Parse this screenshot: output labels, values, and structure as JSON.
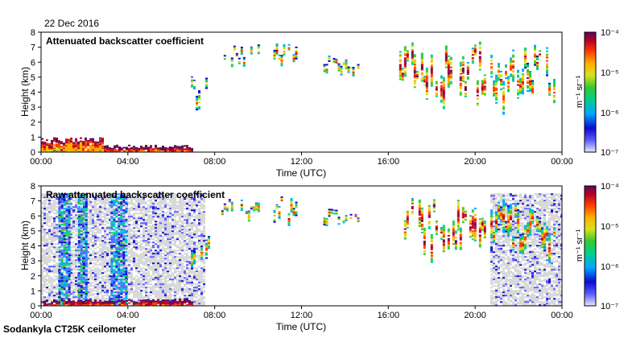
{
  "date": "22 Dec 2016",
  "footer": "Sodankyla CT25K ceilometer",
  "colors": {
    "noise": "#d6d6d6",
    "colormap": [
      "#e9e9ff",
      "#5a5aff",
      "#0b0bd0",
      "#00a7ff",
      "#00d08a",
      "#36c832",
      "#d8e21a",
      "#ffae00",
      "#ff3b00",
      "#b40028",
      "#5a0a55"
    ]
  },
  "chart_data": [
    {
      "type": "heatmap",
      "title": "Attenuated backscatter coefficient",
      "xlabel": "Time (UTC)",
      "ylabel": "Height (km)",
      "x_ticks": [
        "00:00",
        "04:00",
        "08:00",
        "12:00",
        "16:00",
        "20:00",
        "00:00"
      ],
      "xlim_hours": [
        0,
        24
      ],
      "y_ticks": [
        "0",
        "1",
        "2",
        "3",
        "4",
        "5",
        "6",
        "7",
        "8"
      ],
      "ylim_km": [
        0,
        8
      ],
      "colorbar": {
        "label": "m⁻¹ sr⁻¹",
        "scale": "log",
        "range": [
          1e-07,
          0.0001
        ],
        "tick_labels": [
          "10⁻⁴",
          "10⁻⁵",
          "10⁻⁶",
          "10⁻⁷"
        ]
      },
      "features": [
        {
          "kind": "boundary_layer",
          "start_h": 0.0,
          "end_h": 7.0,
          "top_km": 0.45,
          "log10_level": -5.0
        },
        {
          "kind": "aerosol_plume",
          "start_h": 0.0,
          "end_h": 2.8,
          "top_km": 1.0,
          "log10_level": -5.3
        },
        {
          "kind": "cloud",
          "start_h": 6.9,
          "end_h": 7.7,
          "base_km": 2.2,
          "top_km": 5.2,
          "log10_level": -5.3
        },
        {
          "kind": "cloud",
          "start_h": 8.3,
          "end_h": 10.0,
          "base_km": 5.5,
          "top_km": 7.2,
          "log10_level": -5.2
        },
        {
          "kind": "cloud",
          "start_h": 10.7,
          "end_h": 11.8,
          "base_km": 5.3,
          "top_km": 7.3,
          "log10_level": -5.0
        },
        {
          "kind": "cloud",
          "start_h": 13.0,
          "end_h": 14.6,
          "base_km": 5.0,
          "top_km": 6.5,
          "log10_level": -5.2
        },
        {
          "kind": "cloud",
          "start_h": 16.5,
          "end_h": 20.4,
          "base_km": 2.5,
          "top_km": 7.4,
          "log10_level": -4.6
        },
        {
          "kind": "cloud",
          "start_h": 20.7,
          "end_h": 23.8,
          "base_km": 2.5,
          "top_km": 7.2,
          "log10_level": -5.0
        }
      ]
    },
    {
      "type": "heatmap",
      "title": "Raw attenuated backscatter coefficient",
      "xlabel": "Time (UTC)",
      "ylabel": "Height (km)",
      "x_ticks": [
        "00:00",
        "04:00",
        "08:00",
        "12:00",
        "16:00",
        "20:00",
        "00:00"
      ],
      "xlim_hours": [
        0,
        24
      ],
      "y_ticks": [
        "0",
        "1",
        "2",
        "3",
        "4",
        "5",
        "6",
        "7",
        "8"
      ],
      "ylim_km": [
        0,
        8
      ],
      "colorbar": {
        "label": "m⁻¹ sr⁻¹",
        "scale": "log",
        "range": [
          1e-07,
          0.0001
        ],
        "tick_labels": [
          "10⁻⁴",
          "10⁻⁵",
          "10⁻⁶",
          "10⁻⁷"
        ]
      },
      "features": [
        {
          "kind": "noise_background",
          "start_h": 0.0,
          "end_h": 7.5,
          "top_km": 7.5
        },
        {
          "kind": "noise_background",
          "start_h": 20.7,
          "end_h": 24.0,
          "top_km": 7.5
        },
        {
          "kind": "noise_column",
          "start_h": 0.8,
          "end_h": 1.3,
          "top_km": 7.5,
          "log10_level": -6.2
        },
        {
          "kind": "noise_column",
          "start_h": 1.7,
          "end_h": 2.1,
          "top_km": 7.5,
          "log10_level": -6.2
        },
        {
          "kind": "noise_column",
          "start_h": 3.2,
          "end_h": 3.9,
          "top_km": 7.5,
          "log10_level": -6.3
        },
        {
          "kind": "boundary_layer",
          "start_h": 0.0,
          "end_h": 7.0,
          "top_km": 0.45,
          "log10_level": -5.0
        },
        {
          "kind": "cloud",
          "start_h": 6.9,
          "end_h": 7.7,
          "base_km": 2.2,
          "top_km": 5.2,
          "log10_level": -5.3
        },
        {
          "kind": "cloud",
          "start_h": 8.3,
          "end_h": 10.0,
          "base_km": 5.5,
          "top_km": 7.2,
          "log10_level": -5.2
        },
        {
          "kind": "cloud",
          "start_h": 10.7,
          "end_h": 11.8,
          "base_km": 5.3,
          "top_km": 7.3,
          "log10_level": -5.0
        },
        {
          "kind": "cloud",
          "start_h": 13.0,
          "end_h": 14.6,
          "base_km": 5.0,
          "top_km": 6.5,
          "log10_level": -5.2
        },
        {
          "kind": "cloud",
          "start_h": 16.5,
          "end_h": 20.4,
          "base_km": 2.5,
          "top_km": 7.4,
          "log10_level": -4.6
        },
        {
          "kind": "cloud",
          "start_h": 20.7,
          "end_h": 23.8,
          "base_km": 2.5,
          "top_km": 7.2,
          "log10_level": -5.0
        }
      ]
    }
  ]
}
